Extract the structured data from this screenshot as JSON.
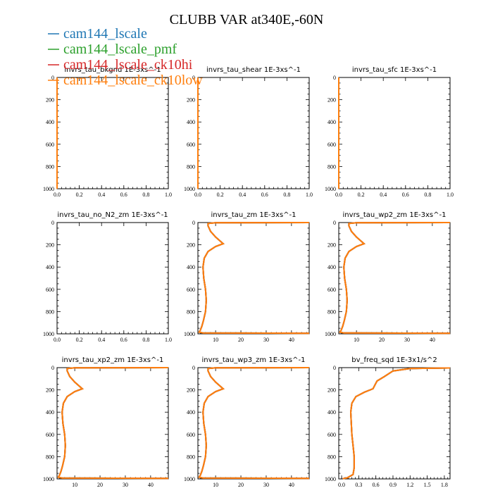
{
  "figure": {
    "title": "CLUBB VAR at340E,-60N"
  },
  "legend": [
    {
      "label": "cam144_lscale",
      "color": "#1f77b4"
    },
    {
      "label": "cam144_lscale_pmf",
      "color": "#2ca02c"
    },
    {
      "label": "cam144_lscale_ck10hi",
      "color": "#d62728"
    },
    {
      "label": "cam144_lscale_ck10low",
      "color": "#ff7f0e"
    }
  ],
  "chart_data": [
    {
      "type": "line",
      "title": "invrs_tau_bkgnd   1E-3xs^-1",
      "xlim": [
        0,
        1
      ],
      "ylim": [
        1000,
        0
      ],
      "xticks": [
        "0.0",
        "0.2",
        "0.4",
        "0.6",
        "0.8",
        "1.0"
      ],
      "yticks": [
        "0",
        "200",
        "400",
        "600",
        "800",
        "1000"
      ],
      "series": [
        {
          "color": "#ff7f0e",
          "x": [
            0,
            0
          ],
          "y": [
            0,
            1000
          ]
        }
      ]
    },
    {
      "type": "line",
      "title": "invrs_tau_shear   1E-3xs^-1",
      "xlim": [
        0,
        1
      ],
      "ylim": [
        1000,
        0
      ],
      "xticks": [
        "0.0",
        "0.2",
        "0.4",
        "0.6",
        "0.8",
        "1.0"
      ],
      "yticks": [
        "0",
        "200",
        "400",
        "600",
        "800",
        "1000"
      ],
      "series": [
        {
          "color": "#ff7f0e",
          "x": [
            0,
            0
          ],
          "y": [
            0,
            1000
          ]
        }
      ]
    },
    {
      "type": "line",
      "title": "invrs_tau_sfc   1E-3xs^-1",
      "xlim": [
        0,
        1
      ],
      "ylim": [
        1000,
        0
      ],
      "xticks": [
        "0.0",
        "0.2",
        "0.4",
        "0.6",
        "0.8",
        "1.0"
      ],
      "yticks": [
        "0",
        "200",
        "400",
        "600",
        "800",
        "1000"
      ],
      "series": [
        {
          "color": "#ff7f0e",
          "x": [
            0,
            0
          ],
          "y": [
            0,
            1000
          ]
        }
      ]
    },
    {
      "type": "line",
      "title": "invrs_tau_no_N2_zm   1E-3xs^-1",
      "xlim": [
        0,
        1
      ],
      "ylim": [
        1000,
        0
      ],
      "xticks": [
        "0.0",
        "0.2",
        "0.4",
        "0.6",
        "0.8",
        "1.0"
      ],
      "yticks": [
        "0",
        "200",
        "400",
        "600",
        "800",
        "1000"
      ],
      "series": []
    },
    {
      "type": "line",
      "title": "invrs_tau_zm   1E-3xs^-1",
      "xlim": [
        3,
        47
      ],
      "ylim": [
        1000,
        0
      ],
      "xticks": [
        "10",
        "20",
        "30",
        "40"
      ],
      "xtickvals": [
        10,
        20,
        30,
        40
      ],
      "yticks": [
        "0",
        "200",
        "400",
        "600",
        "800",
        "1000"
      ],
      "series": [
        {
          "color": "#ff7f0e",
          "x": [
            47,
            10,
            7,
            7,
            8,
            10,
            12,
            13,
            10,
            7,
            5.5,
            5,
            5.3,
            6,
            6.3,
            6,
            5.2,
            4.6,
            4,
            3.5,
            5,
            47
          ],
          "y": [
            0,
            2,
            8,
            30,
            80,
            130,
            170,
            190,
            215,
            260,
            320,
            400,
            500,
            600,
            700,
            800,
            880,
            930,
            965,
            985,
            992,
            995
          ]
        }
      ]
    },
    {
      "type": "line",
      "title": "invrs_tau_wp2_zm   1E-3xs^-1",
      "xlim": [
        3,
        47
      ],
      "ylim": [
        1000,
        0
      ],
      "xticks": [
        "10",
        "20",
        "30",
        "40"
      ],
      "xtickvals": [
        10,
        20,
        30,
        40
      ],
      "yticks": [
        "0",
        "200",
        "400",
        "600",
        "800",
        "1000"
      ],
      "series": [
        {
          "color": "#ff7f0e",
          "x": [
            47,
            10,
            7,
            7,
            8,
            10,
            12,
            13,
            10,
            7,
            5.5,
            5,
            5.3,
            6,
            6.3,
            6,
            5.2,
            4.6,
            4,
            3.5,
            5,
            47
          ],
          "y": [
            0,
            2,
            8,
            30,
            80,
            130,
            170,
            190,
            215,
            260,
            320,
            400,
            500,
            600,
            700,
            800,
            880,
            930,
            965,
            985,
            992,
            995
          ]
        }
      ]
    },
    {
      "type": "line",
      "title": "invrs_tau_xp2_zm   1E-3xs^-1",
      "xlim": [
        3,
        47
      ],
      "ylim": [
        1000,
        0
      ],
      "xticks": [
        "10",
        "20",
        "30",
        "40"
      ],
      "xtickvals": [
        10,
        20,
        30,
        40
      ],
      "yticks": [
        "0",
        "200",
        "400",
        "600",
        "800",
        "1000"
      ],
      "series": [
        {
          "color": "#ff7f0e",
          "x": [
            47,
            10,
            7,
            7,
            8,
            10,
            12,
            13,
            10,
            7,
            5.5,
            5,
            5.3,
            6,
            6.3,
            6,
            5.2,
            4.6,
            4,
            3.5,
            5,
            47
          ],
          "y": [
            0,
            2,
            8,
            30,
            80,
            130,
            170,
            190,
            215,
            260,
            320,
            400,
            500,
            600,
            700,
            800,
            880,
            930,
            965,
            985,
            992,
            995
          ]
        }
      ]
    },
    {
      "type": "line",
      "title": "invrs_tau_wp3_zm   1E-3xs^-1",
      "xlim": [
        3,
        47
      ],
      "ylim": [
        1000,
        0
      ],
      "xticks": [
        "10",
        "20",
        "30",
        "40"
      ],
      "xtickvals": [
        10,
        20,
        30,
        40
      ],
      "yticks": [
        "0",
        "200",
        "400",
        "600",
        "800",
        "1000"
      ],
      "series": [
        {
          "color": "#ff7f0e",
          "x": [
            47,
            10,
            7,
            7,
            8,
            10,
            12,
            13,
            10,
            7,
            5.5,
            5,
            5.3,
            6,
            6.3,
            6,
            5.2,
            4.6,
            4,
            3.5,
            5,
            47
          ],
          "y": [
            0,
            2,
            8,
            30,
            80,
            130,
            170,
            190,
            215,
            260,
            320,
            400,
            500,
            600,
            700,
            800,
            880,
            930,
            965,
            985,
            992,
            995
          ]
        }
      ]
    },
    {
      "type": "line",
      "title": "bv_freq_sqd   1E-3x1/s^2",
      "xlim": [
        -0.05,
        1.9
      ],
      "ylim": [
        1000,
        0
      ],
      "xticks": [
        "0.0",
        "0.3",
        "0.6",
        "0.9",
        "1.2",
        "1.5",
        "1.8"
      ],
      "xtickvals": [
        0,
        0.3,
        0.6,
        0.9,
        1.2,
        1.5,
        1.8
      ],
      "yticks": [
        "0",
        "200",
        "400",
        "600",
        "800",
        "1000"
      ],
      "series": [
        {
          "color": "#ff7f0e",
          "x": [
            1.9,
            1.2,
            0.9,
            0.75,
            0.62,
            0.58,
            0.55,
            0.4,
            0.25,
            0.18,
            0.16,
            0.17,
            0.18,
            0.2,
            0.22,
            0.22,
            0.2,
            0.1,
            0.02
          ],
          "y": [
            3,
            8,
            30,
            80,
            120,
            160,
            190,
            220,
            260,
            320,
            400,
            500,
            600,
            700,
            800,
            900,
            960,
            990,
            998
          ]
        }
      ]
    }
  ]
}
